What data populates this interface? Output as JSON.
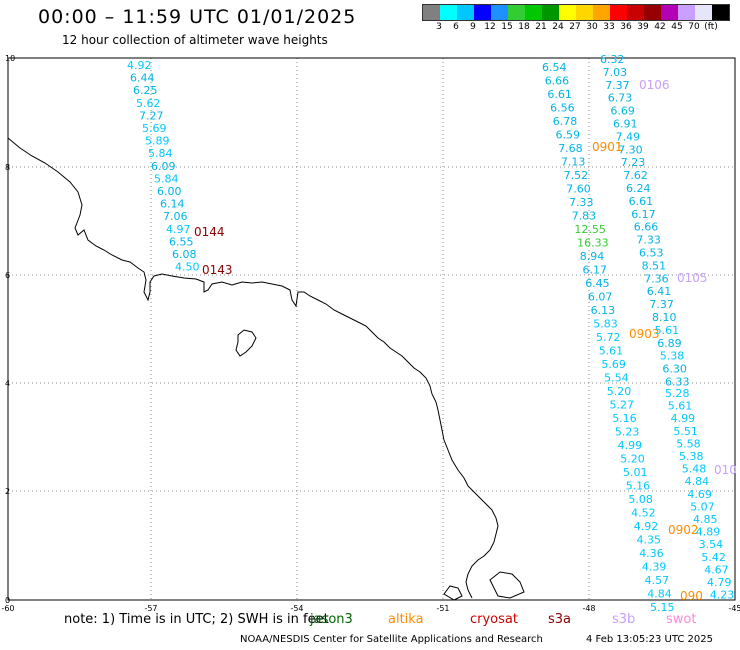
{
  "header": {
    "title": "00:00 – 11:59 UTC 01/01/2025",
    "subtitle": "12 hour collection of altimeter wave heights"
  },
  "scale": {
    "colors": [
      "#808080",
      "#00ffff",
      "#00c8ff",
      "#0000ff",
      "#1e90ff",
      "#32cd32",
      "#00c800",
      "#009600",
      "#ffff00",
      "#ffd700",
      "#ffa500",
      "#ff0000",
      "#c80000",
      "#960000",
      "#b400b4",
      "#c8a0ff",
      "#e6e6fa",
      "#000000"
    ],
    "labels": [
      "3",
      "6",
      "9",
      "12",
      "15",
      "18",
      "21",
      "24",
      "27",
      "30",
      "33",
      "36",
      "39",
      "42",
      "45",
      "70",
      "(ft)"
    ]
  },
  "axes": {
    "x_ticks": [
      "-60",
      "-57",
      "-54",
      "-51",
      "-48",
      "-45"
    ],
    "y_ticks": [
      "0",
      "2",
      "4",
      "6",
      "8",
      "10"
    ]
  },
  "passes": [
    {
      "id": "0144",
      "color": "#8b0000",
      "values": [
        "4.92",
        "6.44",
        "6.25",
        "5.62",
        "7.27",
        "5.69",
        "5.89",
        "5.84",
        "6.09",
        "5.84",
        "6.00",
        "6.14",
        "7.06",
        "4.97",
        "6.55",
        "6.08",
        "4.50"
      ]
    },
    {
      "id": "0143",
      "color": "#8b0000",
      "values": []
    },
    {
      "id": "0106",
      "color": "#c8a0ff",
      "values": []
    },
    {
      "id": "0105",
      "color": "#c8a0ff",
      "values": []
    },
    {
      "id": "010",
      "color": "#c8a0ff",
      "values": []
    },
    {
      "id": "0901",
      "color": "#ff8c00",
      "values": [
        "6.54",
        "6.66",
        "6.61",
        "6.56",
        "6.78",
        "6.59",
        "7.68",
        "7.13",
        "7.52",
        "7.60",
        "7.33",
        "7.83",
        "12.55",
        "16.33",
        "8.94",
        "6.17",
        "6.45",
        "6.07",
        "6.13",
        "5.83",
        "5.72",
        "5.61",
        "5.69",
        "5.54",
        "5.20",
        "5.27",
        "5.16",
        "5.23",
        "4.99",
        "5.20",
        "5.01",
        "5.16",
        "5.08",
        "4.52",
        "4.92",
        "4.35",
        "4.36",
        "4.39",
        "4.57",
        "4.84",
        "5.15"
      ]
    },
    {
      "id": "0903",
      "color": "#ff8c00",
      "values": [
        "6.32",
        "7.03",
        "7.37",
        "6.73",
        "6.69",
        "6.91",
        "7.49",
        "7.30",
        "7.23",
        "7.62",
        "6.24",
        "6.61",
        "6.17",
        "6.66",
        "7.33",
        "6.53",
        "8.51",
        "7.36",
        "6.41",
        "7.37",
        "8.10",
        "5.61",
        "6.89",
        "5.38",
        "6.30",
        "6.33"
      ]
    },
    {
      "id": "0902",
      "color": "#ff8c00",
      "values": [
        "5.28",
        "5.61",
        "4.99",
        "5.51",
        "5.58",
        "5.38",
        "5.48",
        "4.84",
        "4.69",
        "5.07",
        "4.85",
        "4.89",
        "3.54",
        "5.42",
        "4.67",
        "4.79",
        "4.23"
      ]
    },
    {
      "id": "090",
      "color": "#ff8c00",
      "values": []
    }
  ],
  "footer": {
    "note": "note: 1) Time is in UTC; 2) SWH is in feet",
    "satellites": [
      {
        "name": "jason3",
        "color": "#006400"
      },
      {
        "name": "altika",
        "color": "#ff8c00"
      },
      {
        "name": "cryosat",
        "color": "#cc0000"
      },
      {
        "name": "s3a",
        "color": "#8b0000"
      },
      {
        "name": "s3b",
        "color": "#c8a0ff"
      },
      {
        "name": "swot",
        "color": "#ff88dd"
      }
    ],
    "credit": "NOAA/NESDIS Center for Satellite Applications and Research",
    "timestamp": "4 Feb 13:05:23 UTC 2025"
  }
}
